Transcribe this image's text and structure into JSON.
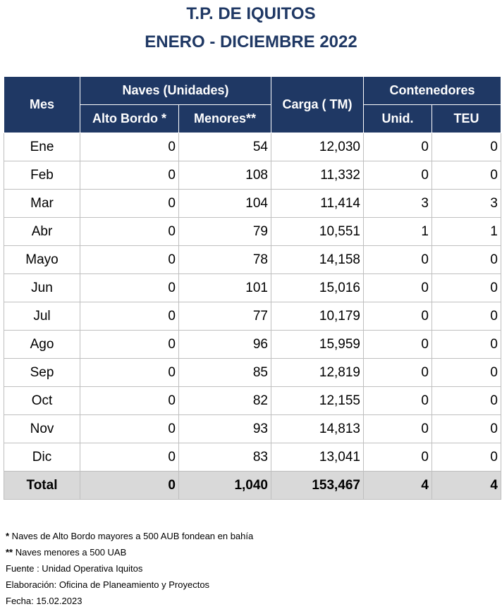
{
  "title_line1": "T.P. DE IQUITOS",
  "title_line2": "ENERO - DICIEMBRE 2022",
  "headers": {
    "mes": "Mes",
    "naves": "Naves (Unidades)",
    "alto_bordo": "Alto Bordo *",
    "menores": "Menores**",
    "carga": "Carga ( TM)",
    "contenedores": "Contenedores",
    "unid": "Unid.",
    "teu": "TEU"
  },
  "rows": [
    {
      "mes": "Ene",
      "alto": "0",
      "menores": "54",
      "carga": "12,030",
      "unid": "0",
      "teu": "0"
    },
    {
      "mes": "Feb",
      "alto": "0",
      "menores": "108",
      "carga": "11,332",
      "unid": "0",
      "teu": "0"
    },
    {
      "mes": "Mar",
      "alto": "0",
      "menores": "104",
      "carga": "11,414",
      "unid": "3",
      "teu": "3"
    },
    {
      "mes": "Abr",
      "alto": "0",
      "menores": "79",
      "carga": "10,551",
      "unid": "1",
      "teu": "1"
    },
    {
      "mes": "Mayo",
      "alto": "0",
      "menores": "78",
      "carga": "14,158",
      "unid": "0",
      "teu": "0"
    },
    {
      "mes": "Jun",
      "alto": "0",
      "menores": "101",
      "carga": "15,016",
      "unid": "0",
      "teu": "0"
    },
    {
      "mes": "Jul",
      "alto": "0",
      "menores": "77",
      "carga": "10,179",
      "unid": "0",
      "teu": "0"
    },
    {
      "mes": "Ago",
      "alto": "0",
      "menores": "96",
      "carga": "15,959",
      "unid": "0",
      "teu": "0"
    },
    {
      "mes": "Sep",
      "alto": "0",
      "menores": "85",
      "carga": "12,819",
      "unid": "0",
      "teu": "0"
    },
    {
      "mes": "Oct",
      "alto": "0",
      "menores": "82",
      "carga": "12,155",
      "unid": "0",
      "teu": "0"
    },
    {
      "mes": "Nov",
      "alto": "0",
      "menores": "93",
      "carga": "14,813",
      "unid": "0",
      "teu": "0"
    },
    {
      "mes": "Dic",
      "alto": "0",
      "menores": "83",
      "carga": "13,041",
      "unid": "0",
      "teu": "0"
    }
  ],
  "total": {
    "mes": "Total",
    "alto": "0",
    "menores": "1,040",
    "carga": "153,467",
    "unid": "4",
    "teu": "4"
  },
  "notes": {
    "n1_mark": "*",
    "n1": " Naves de Alto Bordo mayores a 500 AUB fondean en bahía",
    "n2_mark": "**",
    "n2": " Naves menores a 500 UAB",
    "fuente": "Fuente : Unidad Operativa Iquitos",
    "elaboracion": "Elaboración: Oficina de Planeamiento y Proyectos",
    "fecha": "Fecha: 15.02.2023"
  },
  "colors": {
    "header_bg": "#1f3864",
    "title": "#1f3864",
    "total_bg": "#d9d9d9"
  }
}
